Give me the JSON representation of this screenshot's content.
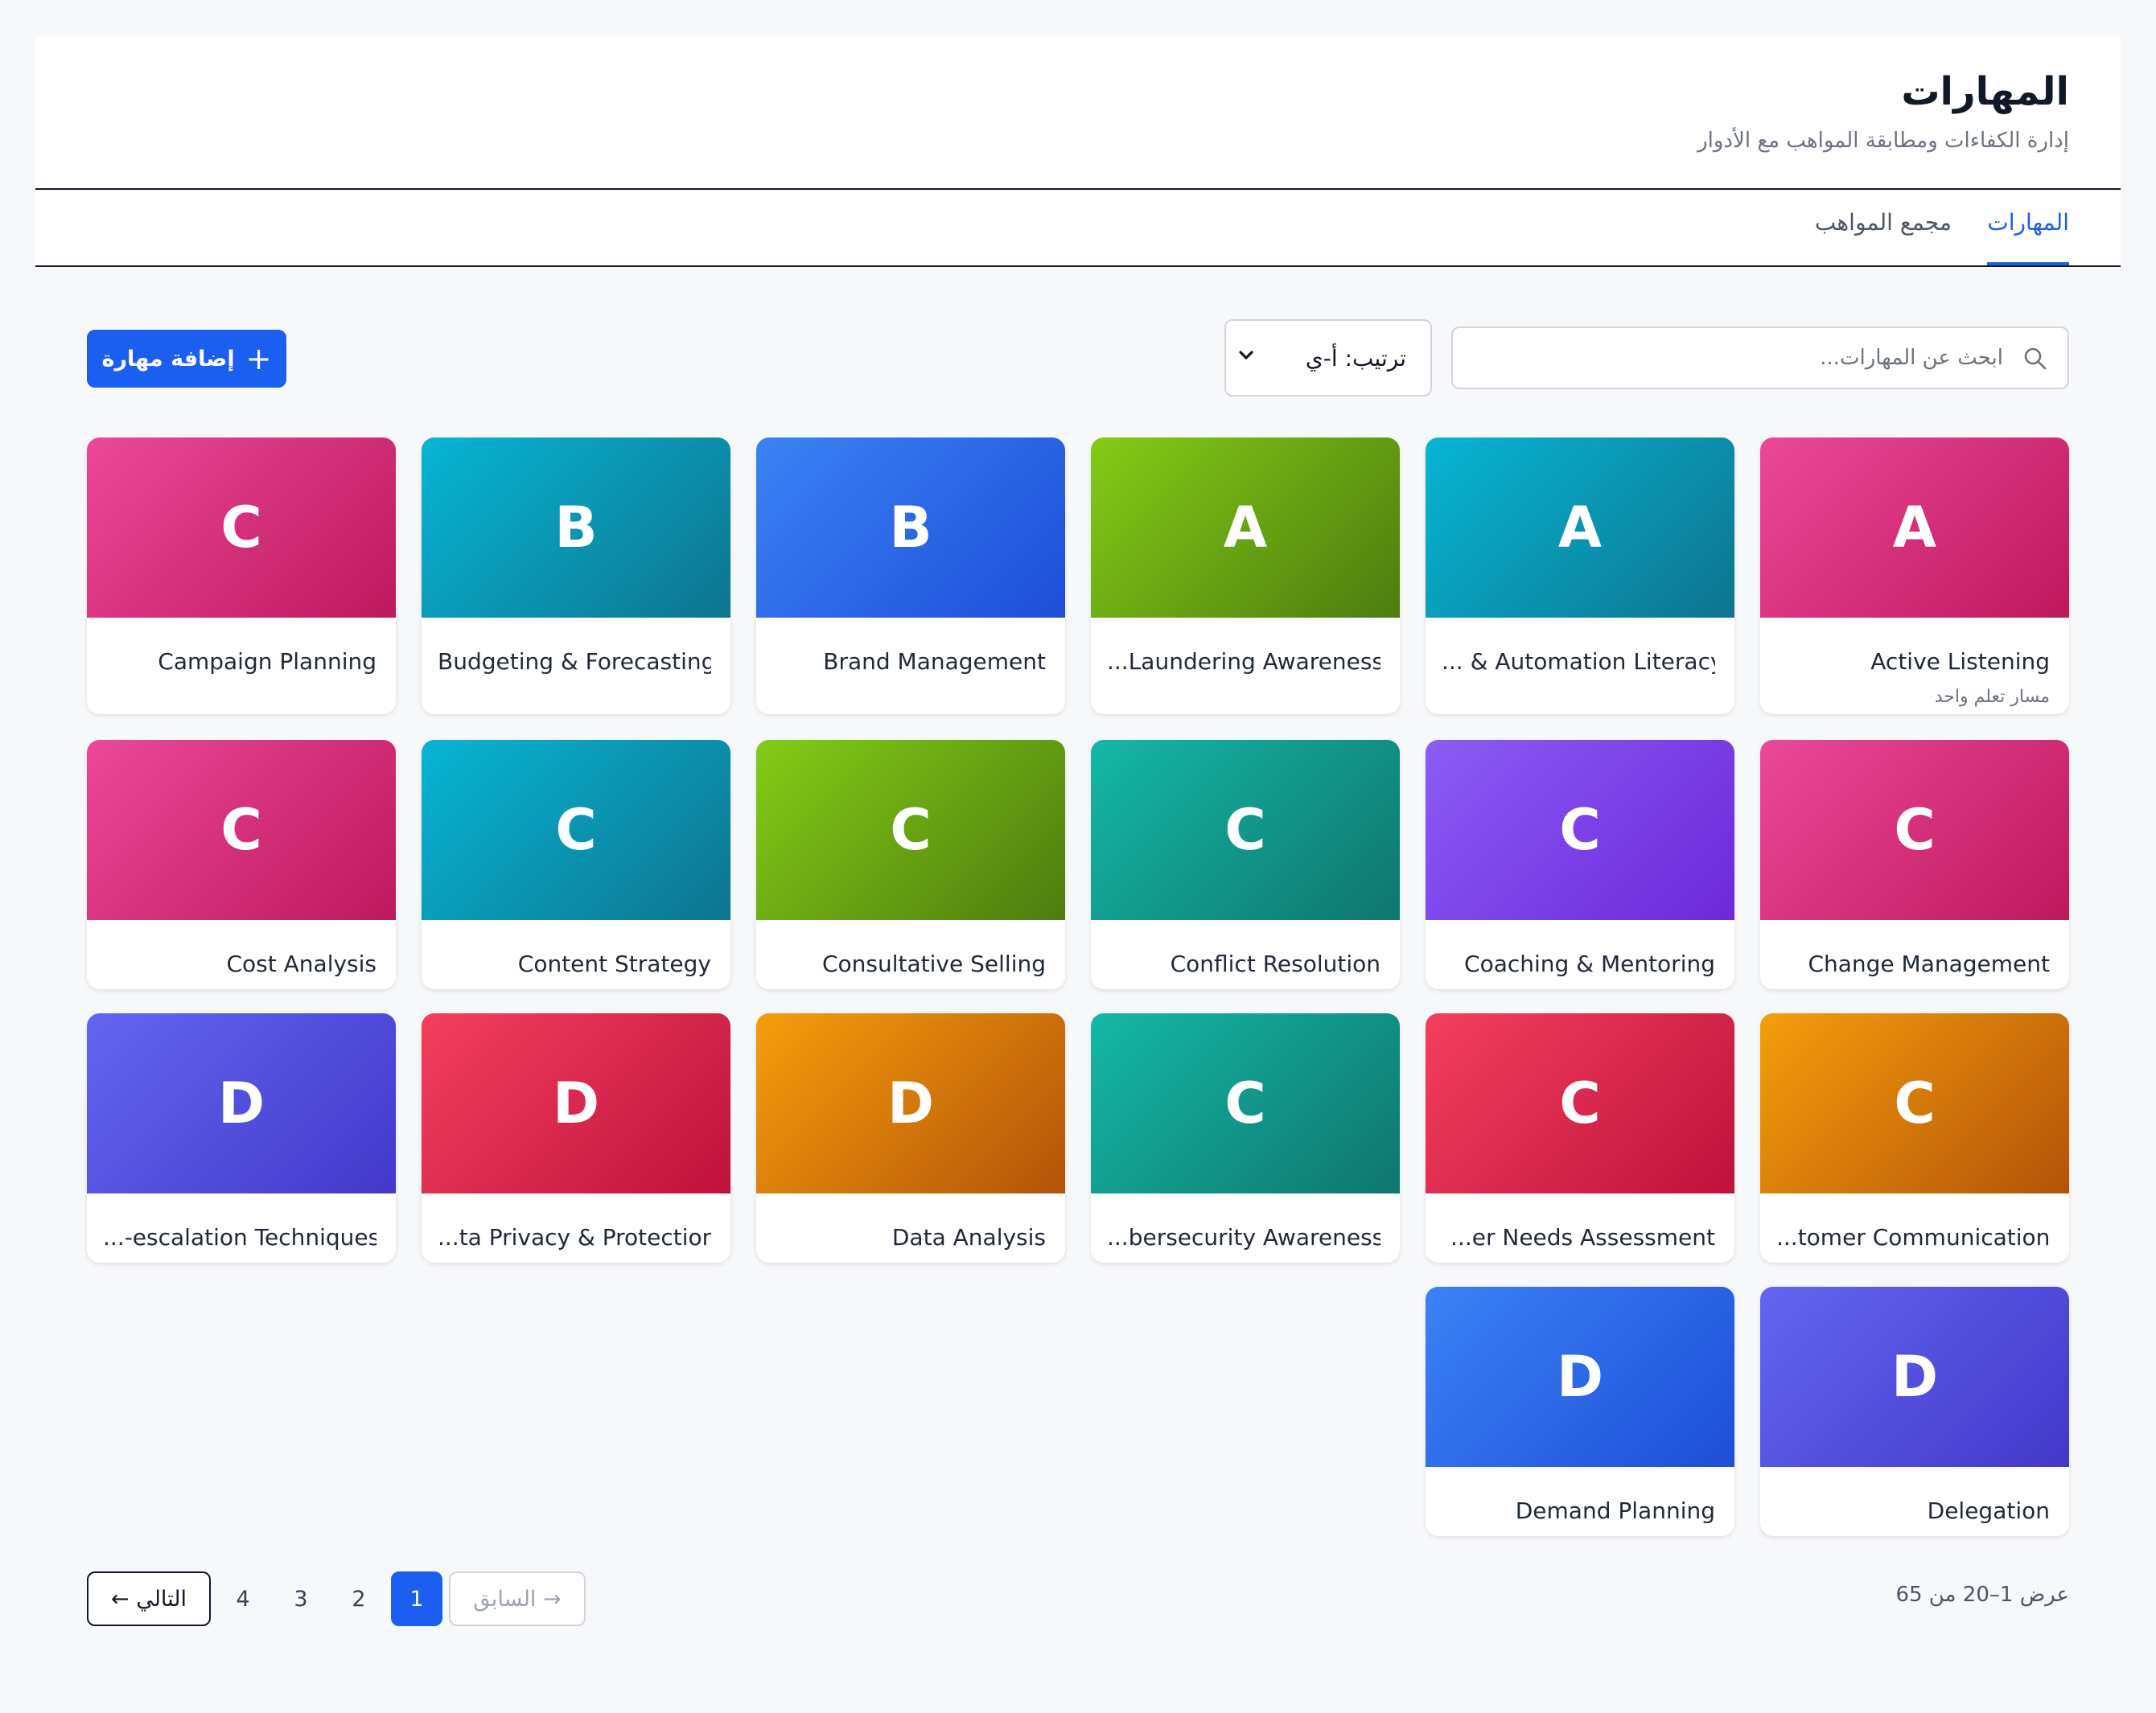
{
  "header": {
    "title": "المهارات",
    "subtitle": "إدارة الكفاءات ومطابقة المواهب مع الأدوار"
  },
  "tabs": [
    {
      "label": "المهارات",
      "active": true
    },
    {
      "label": "مجمع المواهب",
      "active": false
    }
  ],
  "toolbar": {
    "add_label": "إضافة مهارة",
    "sort_label": "ترتيب: أ-ي",
    "search_placeholder": "ابحث عن المهارات..."
  },
  "cards": [
    {
      "letter": "A",
      "title": "Active Listening",
      "subtitle": "مسار تعلم واحد",
      "color1": "#ec4899",
      "color2": "#be185d"
    },
    {
      "letter": "A",
      "title": "... & Automation Literacy",
      "color1": "#06b6d4",
      "color2": "#0e7490"
    },
    {
      "letter": "A",
      "title": "...Laundering Awareness",
      "color1": "#84cc16",
      "color2": "#4d7c0f"
    },
    {
      "letter": "B",
      "title": "Brand Management",
      "color1": "#3b82f6",
      "color2": "#1d4ed8"
    },
    {
      "letter": "B",
      "title": "Budgeting & Forecasting",
      "color1": "#06b6d4",
      "color2": "#0e7490"
    },
    {
      "letter": "C",
      "title": "Campaign Planning",
      "color1": "#ec4899",
      "color2": "#be185d"
    },
    {
      "letter": "C",
      "title": "Change Management",
      "color1": "#ec4899",
      "color2": "#be185d"
    },
    {
      "letter": "C",
      "title": "Coaching & Mentoring",
      "color1": "#8b5cf6",
      "color2": "#6d28d9"
    },
    {
      "letter": "C",
      "title": "Conflict Resolution",
      "color1": "#14b8a6",
      "color2": "#0f766e"
    },
    {
      "letter": "C",
      "title": "Consultative Selling",
      "color1": "#84cc16",
      "color2": "#4d7c0f"
    },
    {
      "letter": "C",
      "title": "Content Strategy",
      "color1": "#06b6d4",
      "color2": "#0e7490"
    },
    {
      "letter": "C",
      "title": "Cost Analysis",
      "color1": "#ec4899",
      "color2": "#be185d"
    },
    {
      "letter": "C",
      "title": "...tomer Communication",
      "color1": "#f59e0b",
      "color2": "#b45309"
    },
    {
      "letter": "C",
      "title": "...er Needs Assessment",
      "color1": "#f43f5e",
      "color2": "#be123c"
    },
    {
      "letter": "C",
      "title": "...bersecurity Awareness",
      "color1": "#14b8a6",
      "color2": "#0f766e"
    },
    {
      "letter": "D",
      "title": "Data Analysis",
      "color1": "#f59e0b",
      "color2": "#b45309"
    },
    {
      "letter": "D",
      "title": "...ta Privacy & Protection",
      "color1": "#f43f5e",
      "color2": "#be123c"
    },
    {
      "letter": "D",
      "title": "...-escalation Techniques",
      "color1": "#6366f1",
      "color2": "#4338ca"
    },
    {
      "letter": "D",
      "title": "Delegation",
      "color1": "#6366f1",
      "color2": "#4338ca"
    },
    {
      "letter": "D",
      "title": "Demand Planning",
      "color1": "#3b82f6",
      "color2": "#1d4ed8"
    }
  ],
  "pagination": {
    "info": "عرض 1–20 من 65",
    "prev_label": "→ السابق",
    "next_label": "التالي ←",
    "pages": [
      "1",
      "2",
      "3",
      "4"
    ],
    "current": "1"
  },
  "icons": {
    "search": "search-icon",
    "plus": "plus-icon",
    "chevron": "chevron-down-icon"
  }
}
